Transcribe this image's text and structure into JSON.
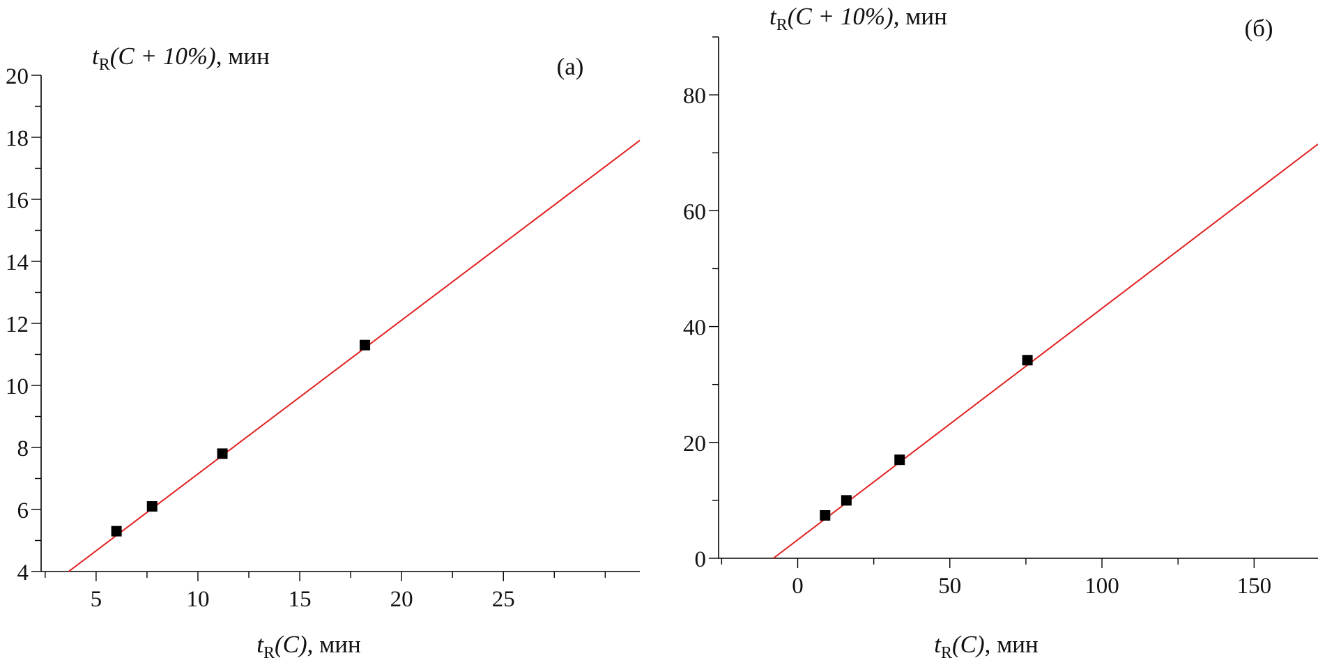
{
  "chart_data": [
    {
      "type": "scatter",
      "panel_label": "(а)",
      "xlabel": {
        "var": "t",
        "sub": "R",
        "arg": "(C)",
        "unit": ", мин"
      },
      "ylabel": {
        "var": "t",
        "sub": "R",
        "arg": "(C + 10%)",
        "unit": ", мин"
      },
      "xlim": [
        2.3,
        31.7
      ],
      "ylim": [
        4,
        20
      ],
      "xticks": [
        5,
        10,
        15,
        20,
        25
      ],
      "xtick_labels": [
        "5",
        "10",
        "15",
        "20",
        "25"
      ],
      "yticks": [
        4,
        6,
        8,
        10,
        12,
        14,
        16,
        18,
        20
      ],
      "ytick_labels": [
        "4",
        "6",
        "8",
        "10",
        "12",
        "14",
        "16",
        "18",
        "20"
      ],
      "x_minor_step": 2.5,
      "y_minor_step": 1,
      "grid": false,
      "points": [
        {
          "x": 6.0,
          "y": 5.3
        },
        {
          "x": 7.75,
          "y": 6.1
        },
        {
          "x": 11.2,
          "y": 7.8
        },
        {
          "x": 18.2,
          "y": 11.3
        }
      ],
      "fit_line": {
        "x": [
          3.65,
          31.7
        ],
        "y": [
          4.0,
          17.9
        ],
        "color": "#e02020"
      },
      "marker_color": "#000000"
    },
    {
      "type": "scatter",
      "panel_label": "(б)",
      "xlabel": {
        "var": "t",
        "sub": "R",
        "arg": "(C)",
        "unit": ", мин"
      },
      "ylabel": {
        "var": "t",
        "sub": "R",
        "arg": "(C + 10%)",
        "unit": ", мин"
      },
      "xlim": [
        -26,
        171
      ],
      "ylim": [
        0,
        90
      ],
      "xticks": [
        0,
        50,
        100,
        150
      ],
      "xtick_labels": [
        "0",
        "50",
        "100",
        "150"
      ],
      "yticks": [
        0,
        20,
        40,
        60,
        80
      ],
      "ytick_labels": [
        "0",
        "20",
        "40",
        "60",
        "80"
      ],
      "x_minor_step": 25,
      "y_minor_step": 10,
      "grid": false,
      "points": [
        {
          "x": 9.0,
          "y": 7.4
        },
        {
          "x": 16.0,
          "y": 10.0
        },
        {
          "x": 33.5,
          "y": 17.0
        },
        {
          "x": 75.5,
          "y": 34.2
        }
      ],
      "fit_line": {
        "x": [
          -8,
          171
        ],
        "y": [
          0,
          71.5
        ],
        "color": "#e02020"
      },
      "marker_color": "#000000"
    }
  ]
}
